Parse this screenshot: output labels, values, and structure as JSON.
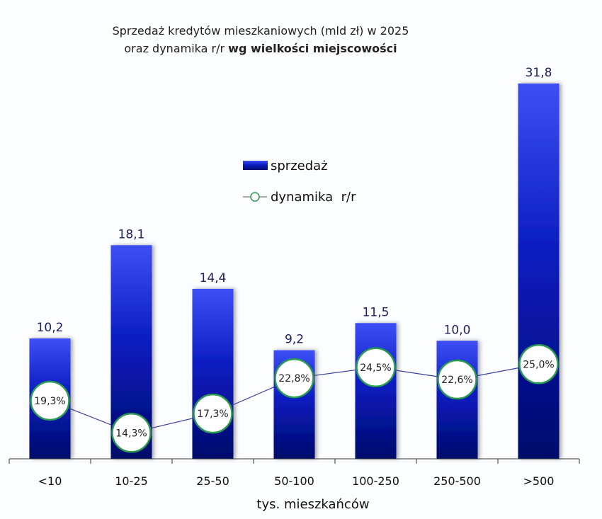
{
  "chart_data": {
    "type": "bar",
    "title_line1": "Sprzedaż kredytów mieszkaniowych (mld zł) w 2025",
    "title_line2_normal": "oraz dynamika r/r ",
    "title_line2_bold": "wg wielkości miejscowości",
    "xlabel": "tys. mieszkańców",
    "categories": [
      "<10",
      "10-25",
      "25-50",
      "50-100",
      "100-250",
      "250-500",
      ">500"
    ],
    "series": [
      {
        "name": "sprzedaż",
        "type": "bar",
        "values": [
          10.2,
          18.1,
          14.4,
          9.2,
          11.5,
          10.0,
          31.8
        ],
        "labels": [
          "10,2",
          "18,1",
          "14,4",
          "9,2",
          "11,5",
          "10,0",
          "31,8"
        ],
        "color": "#1a2fd8"
      },
      {
        "name": "dynamika  r/r",
        "type": "line",
        "values": [
          19.3,
          14.3,
          17.3,
          22.8,
          24.5,
          22.6,
          25.0
        ],
        "labels": [
          "19,3%",
          "14,3%",
          "17,3%",
          "22,8%",
          "24,5%",
          "22,6%",
          "25,0%"
        ],
        "color": "#3a3f9a",
        "marker_color": "#2a9a50"
      }
    ],
    "legend_placement": "center",
    "grid": false
  }
}
